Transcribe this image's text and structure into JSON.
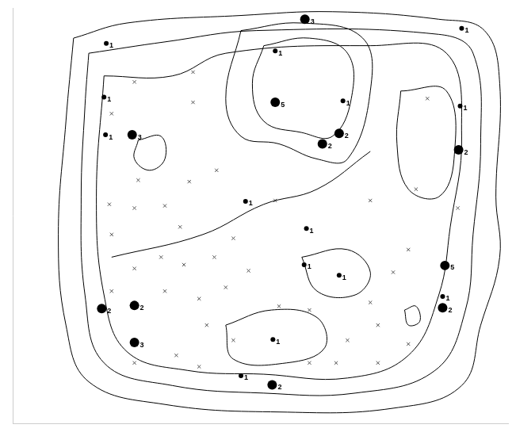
{
  "chart_data": {
    "type": "contour",
    "xlim": [
      0,
      651
    ],
    "ylim": [
      0,
      550
    ],
    "tick_labels": false,
    "grid": false,
    "contours": {
      "color": "#000000",
      "line_style": "solid",
      "lines": [
        [
          [
            80,
            510
          ],
          [
            150,
            530
          ],
          [
            300,
            540
          ],
          [
            420,
            545
          ],
          [
            560,
            535
          ],
          [
            620,
            520
          ],
          [
            640,
            450
          ],
          [
            635,
            300
          ],
          [
            640,
            220
          ],
          [
            615,
            130
          ],
          [
            590,
            50
          ],
          [
            500,
            20
          ],
          [
            350,
            15
          ],
          [
            200,
            25
          ],
          [
            100,
            55
          ],
          [
            70,
            130
          ],
          [
            60,
            250
          ],
          [
            70,
            400
          ],
          [
            80,
            510
          ]
        ],
        [
          [
            100,
            490
          ],
          [
            200,
            505
          ],
          [
            320,
            520
          ],
          [
            560,
            515
          ],
          [
            605,
            490
          ],
          [
            615,
            370
          ],
          [
            605,
            250
          ],
          [
            595,
            150
          ],
          [
            555,
            70
          ],
          [
            450,
            40
          ],
          [
            330,
            40
          ],
          [
            210,
            50
          ],
          [
            120,
            80
          ],
          [
            95,
            170
          ],
          [
            90,
            300
          ],
          [
            95,
            420
          ],
          [
            100,
            490
          ]
        ],
        [
          [
            120,
            460
          ],
          [
            210,
            460
          ],
          [
            280,
            490
          ],
          [
            470,
            500
          ],
          [
            570,
            490
          ],
          [
            590,
            380
          ],
          [
            575,
            260
          ],
          [
            560,
            170
          ],
          [
            520,
            90
          ],
          [
            440,
            60
          ],
          [
            330,
            65
          ],
          [
            230,
            70
          ],
          [
            150,
            95
          ],
          [
            120,
            170
          ],
          [
            110,
            300
          ],
          [
            120,
            460
          ]
        ],
        [
          [
            300,
            520
          ],
          [
            380,
            530
          ],
          [
            460,
            510
          ],
          [
            470,
            440
          ],
          [
            440,
            350
          ],
          [
            400,
            350
          ],
          [
            350,
            370
          ],
          [
            300,
            380
          ],
          [
            280,
            430
          ],
          [
            300,
            520
          ]
        ],
        [
          [
            330,
            500
          ],
          [
            390,
            510
          ],
          [
            440,
            490
          ],
          [
            445,
            430
          ],
          [
            420,
            380
          ],
          [
            380,
            385
          ],
          [
            330,
            400
          ],
          [
            315,
            450
          ],
          [
            330,
            500
          ]
        ],
        [
          [
            510,
            440
          ],
          [
            570,
            440
          ],
          [
            580,
            350
          ],
          [
            560,
            300
          ],
          [
            520,
            310
          ],
          [
            505,
            370
          ],
          [
            510,
            440
          ]
        ],
        [
          [
            165,
            375
          ],
          [
            195,
            380
          ],
          [
            200,
            350
          ],
          [
            180,
            335
          ],
          [
            160,
            350
          ],
          [
            165,
            375
          ]
        ],
        [
          [
            280,
            130
          ],
          [
            340,
            150
          ],
          [
            400,
            140
          ],
          [
            410,
            100
          ],
          [
            360,
            80
          ],
          [
            290,
            85
          ],
          [
            280,
            130
          ]
        ],
        [
          [
            380,
            220
          ],
          [
            440,
            230
          ],
          [
            470,
            200
          ],
          [
            450,
            170
          ],
          [
            400,
            175
          ],
          [
            380,
            220
          ]
        ],
        [
          [
            515,
            150
          ],
          [
            530,
            155
          ],
          [
            535,
            135
          ],
          [
            520,
            130
          ],
          [
            515,
            150
          ]
        ],
        [
          [
            130,
            220
          ],
          [
            250,
            250
          ],
          [
            330,
            290
          ],
          [
            400,
            310
          ],
          [
            470,
            360
          ]
        ]
      ]
    },
    "samples": {
      "marker": "circle",
      "color": "#000000",
      "x": [
        123,
        384,
        345,
        345,
        434,
        120,
        590,
        588,
        122,
        157,
        429,
        407,
        586,
        306,
        386,
        383,
        429,
        568,
        565,
        565,
        117,
        160,
        160,
        342,
        300,
        341
      ],
      "y": [
        503,
        535,
        493,
        425,
        427,
        432,
        523,
        420,
        382,
        382,
        384,
        370,
        362,
        294,
        258,
        210,
        196,
        209,
        168,
        153,
        152,
        156,
        107,
        111,
        63,
        51
      ],
      "values": [
        1,
        3,
        1,
        5,
        1,
        1,
        1,
        1,
        1,
        3,
        2,
        2,
        2,
        1,
        1,
        1,
        1,
        5,
        1,
        2,
        2,
        2,
        3,
        1,
        1,
        2
      ],
      "data_labels": true
    },
    "crosses": {
      "marker": "x",
      "color": "#555555",
      "x": [
        160,
        130,
        237,
        237,
        268,
        232,
        165,
        127,
        160,
        200,
        130,
        220,
        160,
        195,
        225,
        265,
        290,
        130,
        200,
        245,
        280,
        310,
        255,
        215,
        160,
        245,
        390,
        425,
        480,
        440,
        480,
        520,
        470,
        500,
        520,
        585,
        530,
        545,
        470,
        345,
        390,
        350,
        290
      ],
      "y": [
        452,
        410,
        465,
        425,
        335,
        320,
        322,
        290,
        285,
        288,
        250,
        260,
        205,
        220,
        210,
        220,
        245,
        175,
        175,
        165,
        180,
        202,
        130,
        90,
        80,
        75,
        80,
        80,
        80,
        110,
        130,
        105,
        160,
        200,
        230,
        285,
        310,
        430,
        295,
        295,
        150,
        155,
        110
      ]
    }
  }
}
